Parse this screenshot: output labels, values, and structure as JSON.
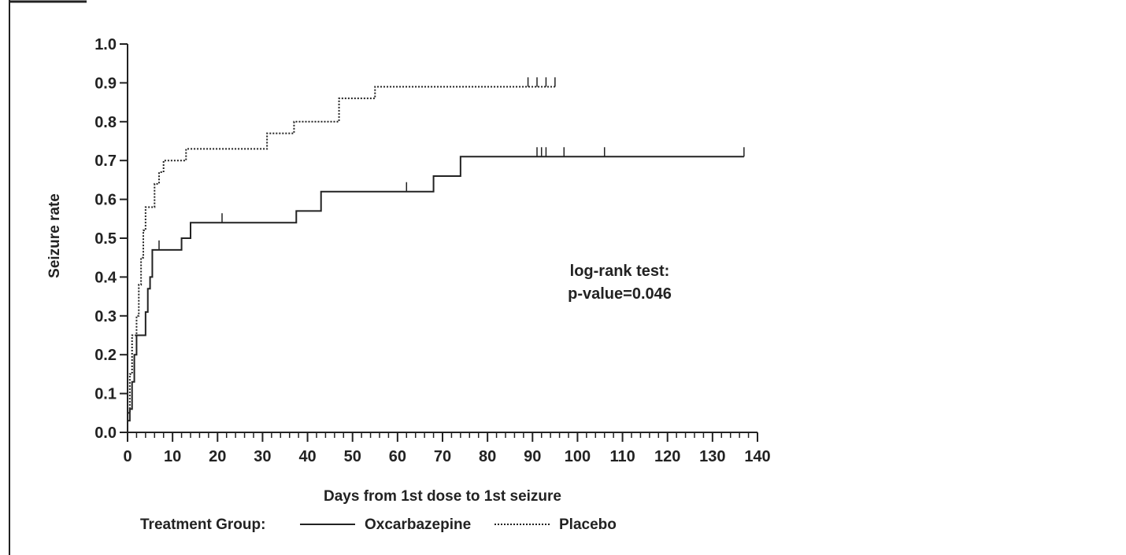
{
  "chart_data": {
    "type": "line",
    "step": true,
    "xlabel": "Days from 1st dose to 1st seizure",
    "ylabel": "Seizure rate",
    "xlim": [
      0,
      140
    ],
    "ylim": [
      0,
      1.0
    ],
    "xticks": [
      "0",
      "10",
      "20",
      "30",
      "40",
      "50",
      "60",
      "70",
      "80",
      "90",
      "100",
      "110",
      "120",
      "130",
      "140"
    ],
    "yticks": [
      "0.0",
      "0.1",
      "0.2",
      "0.3",
      "0.4",
      "0.5",
      "0.6",
      "0.7",
      "0.8",
      "0.9",
      "1.0"
    ],
    "grid": false,
    "legend_position": "bottom",
    "legend_title": "Treatment Group:",
    "annotation": [
      "log-rank test:",
      "p-value=0.046"
    ],
    "series": [
      {
        "name": "Oxcarbazepine",
        "style": "solid",
        "points": [
          [
            0,
            0.03
          ],
          [
            0.5,
            0.06
          ],
          [
            1,
            0.13
          ],
          [
            1.5,
            0.2
          ],
          [
            2,
            0.25
          ],
          [
            3,
            0.25
          ],
          [
            4,
            0.31
          ],
          [
            4.5,
            0.37
          ],
          [
            5,
            0.4
          ],
          [
            5.5,
            0.47
          ],
          [
            12,
            0.5
          ],
          [
            14,
            0.54
          ],
          [
            37.5,
            0.57
          ],
          [
            43,
            0.62
          ],
          [
            68,
            0.66
          ],
          [
            74,
            0.71
          ],
          [
            137,
            0.71
          ]
        ],
        "censored": [
          [
            7,
            0.47
          ],
          [
            21,
            0.54
          ],
          [
            62,
            0.62
          ],
          [
            91,
            0.71
          ],
          [
            92,
            0.71
          ],
          [
            93,
            0.71
          ],
          [
            97,
            0.71
          ],
          [
            106,
            0.71
          ],
          [
            137,
            0.71
          ]
        ]
      },
      {
        "name": "Placebo",
        "style": "dotted",
        "points": [
          [
            0,
            0.05
          ],
          [
            0.5,
            0.15
          ],
          [
            1,
            0.25
          ],
          [
            2,
            0.3
          ],
          [
            2.5,
            0.38
          ],
          [
            3,
            0.45
          ],
          [
            3.5,
            0.52
          ],
          [
            4,
            0.58
          ],
          [
            5,
            0.58
          ],
          [
            6,
            0.64
          ],
          [
            7,
            0.67
          ],
          [
            8,
            0.7
          ],
          [
            10,
            0.7
          ],
          [
            13,
            0.73
          ],
          [
            31,
            0.77
          ],
          [
            37,
            0.8
          ],
          [
            47,
            0.86
          ],
          [
            55,
            0.89
          ],
          [
            95,
            0.89
          ]
        ],
        "censored": [
          [
            89,
            0.89
          ],
          [
            91,
            0.89
          ],
          [
            93,
            0.89
          ],
          [
            95,
            0.89
          ]
        ]
      }
    ],
    "colors": {
      "ink": "#222222"
    }
  }
}
